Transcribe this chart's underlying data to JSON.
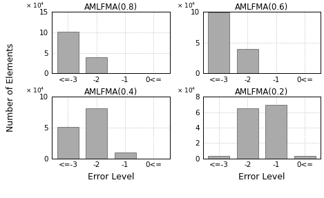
{
  "subplots": [
    {
      "title": "AMLFMA(0.8)",
      "values": [
        10.1,
        4.0,
        0,
        0
      ],
      "ylim": [
        0,
        15
      ],
      "yticks": [
        0,
        5,
        10,
        15
      ],
      "yexp": 4
    },
    {
      "title": "AMLFMA(0.6)",
      "values": [
        9.9,
        4.0,
        0,
        0
      ],
      "ylim": [
        0,
        10
      ],
      "yticks": [
        0,
        5,
        10
      ],
      "yexp": 4
    },
    {
      "title": "AMLFMA(0.4)",
      "values": [
        5.1,
        8.1,
        1.0,
        0
      ],
      "ylim": [
        0,
        10
      ],
      "yticks": [
        0,
        5,
        10
      ],
      "yexp": 4
    },
    {
      "title": "AMLFMA(0.2)",
      "values": [
        0.3,
        6.5,
        7.0,
        0.3
      ],
      "ylim": [
        0,
        8
      ],
      "yticks": [
        0,
        2,
        4,
        6,
        8
      ],
      "yexp": 4
    }
  ],
  "categories": [
    "<=-3",
    "-2",
    "-1",
    "0<="
  ],
  "bar_color": "#aaaaaa",
  "bar_edgecolor": "#555555",
  "xlabel": "Error Level",
  "ylabel": "Number of Elements",
  "grid_color": "#bbbbbb",
  "grid_linestyle": ":",
  "title_fontsize": 8.5,
  "tick_fontsize": 7.5,
  "label_fontsize": 9
}
